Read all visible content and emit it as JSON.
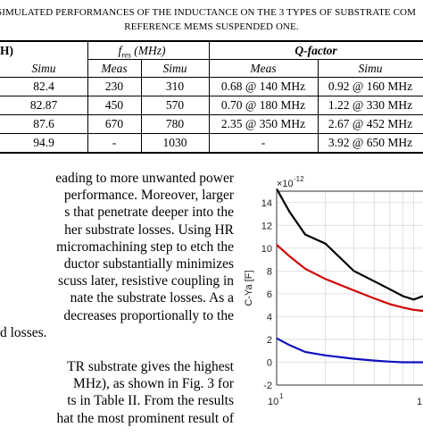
{
  "caption": {
    "line1": "SIMULATED PERFORMANCES OF THE INDUCTANCE ON THE 3 TYPES OF SUBSTRATE COM",
    "line2": "REFERENCE MEMS SUSPENDED ONE."
  },
  "table": {
    "header_top": [
      "H)",
      "f",
      "res",
      " (MHz)",
      "Q-factor"
    ],
    "header_sub": [
      "Simu",
      "Meas",
      "Simu",
      "Meas",
      "Simu"
    ],
    "rows": [
      [
        "82.4",
        "230",
        "310",
        "0.68 @ 140 MHz",
        "0.92 @ 160 MHz"
      ],
      [
        "82.87",
        "450",
        "570",
        "0.70 @ 180 MHz",
        "1.22 @ 330 MHz"
      ],
      [
        "87.6",
        "670",
        "780",
        "2.35 @ 350 MHz",
        "2.67 @ 452 MHz"
      ],
      [
        "94.9",
        "-",
        "1030",
        "-",
        "3.92 @ 650 MHz"
      ]
    ]
  },
  "body_lines": [
    "eading to more unwanted power",
    "performance. Moreover, larger",
    "s that penetrate deeper into the",
    "her substrate losses. Using HR",
    "micromachining step to etch the",
    "ductor substantially minimizes",
    "scuss later, resistive coupling in",
    "nate the substrate losses. As a",
    "decreases proportionally to the",
    "d losses.",
    "",
    "TR substrate gives the highest",
    "MHz), as shown in Fig. 3 for",
    "ts in Table II. From the results",
    "hat the most prominent result of",
    "               "
  ],
  "chart_data": {
    "type": "line",
    "xlabel": "",
    "ylabel": "C-Ya [F]",
    "y_exponent_label": "×10",
    "y_exponent_power": "-12",
    "x_scale": "log",
    "ylim": [
      -2,
      15
    ],
    "xlim": [
      10,
      80
    ],
    "yticks": [
      "-2",
      "0",
      "2",
      "4",
      "6",
      "8",
      "10",
      "12",
      "14"
    ],
    "xtick_label_base": "10",
    "xtick_label_power": "1",
    "xtick_label_partial": "1",
    "grid": true,
    "series": [
      {
        "color": "#000000",
        "x": [
          10,
          12,
          15,
          20,
          30,
          40,
          50,
          60,
          70,
          80
        ],
        "y": [
          15.2,
          13.2,
          11.2,
          10.4,
          8.0,
          7.1,
          6.4,
          5.8,
          5.5,
          5.8
        ]
      },
      {
        "color": "#d00000",
        "x": [
          10,
          12,
          15,
          20,
          30,
          40,
          50,
          60,
          70,
          80
        ],
        "y": [
          10.3,
          9.3,
          8.2,
          7.3,
          6.3,
          5.6,
          5.1,
          4.8,
          4.6,
          4.5
        ]
      },
      {
        "color": "#1010c0",
        "x": [
          10,
          12,
          15,
          20,
          30,
          40,
          50,
          60,
          70,
          80
        ],
        "y": [
          2.1,
          1.5,
          0.9,
          0.6,
          0.3,
          0.15,
          0.05,
          0.0,
          0.0,
          0.0
        ]
      }
    ]
  }
}
